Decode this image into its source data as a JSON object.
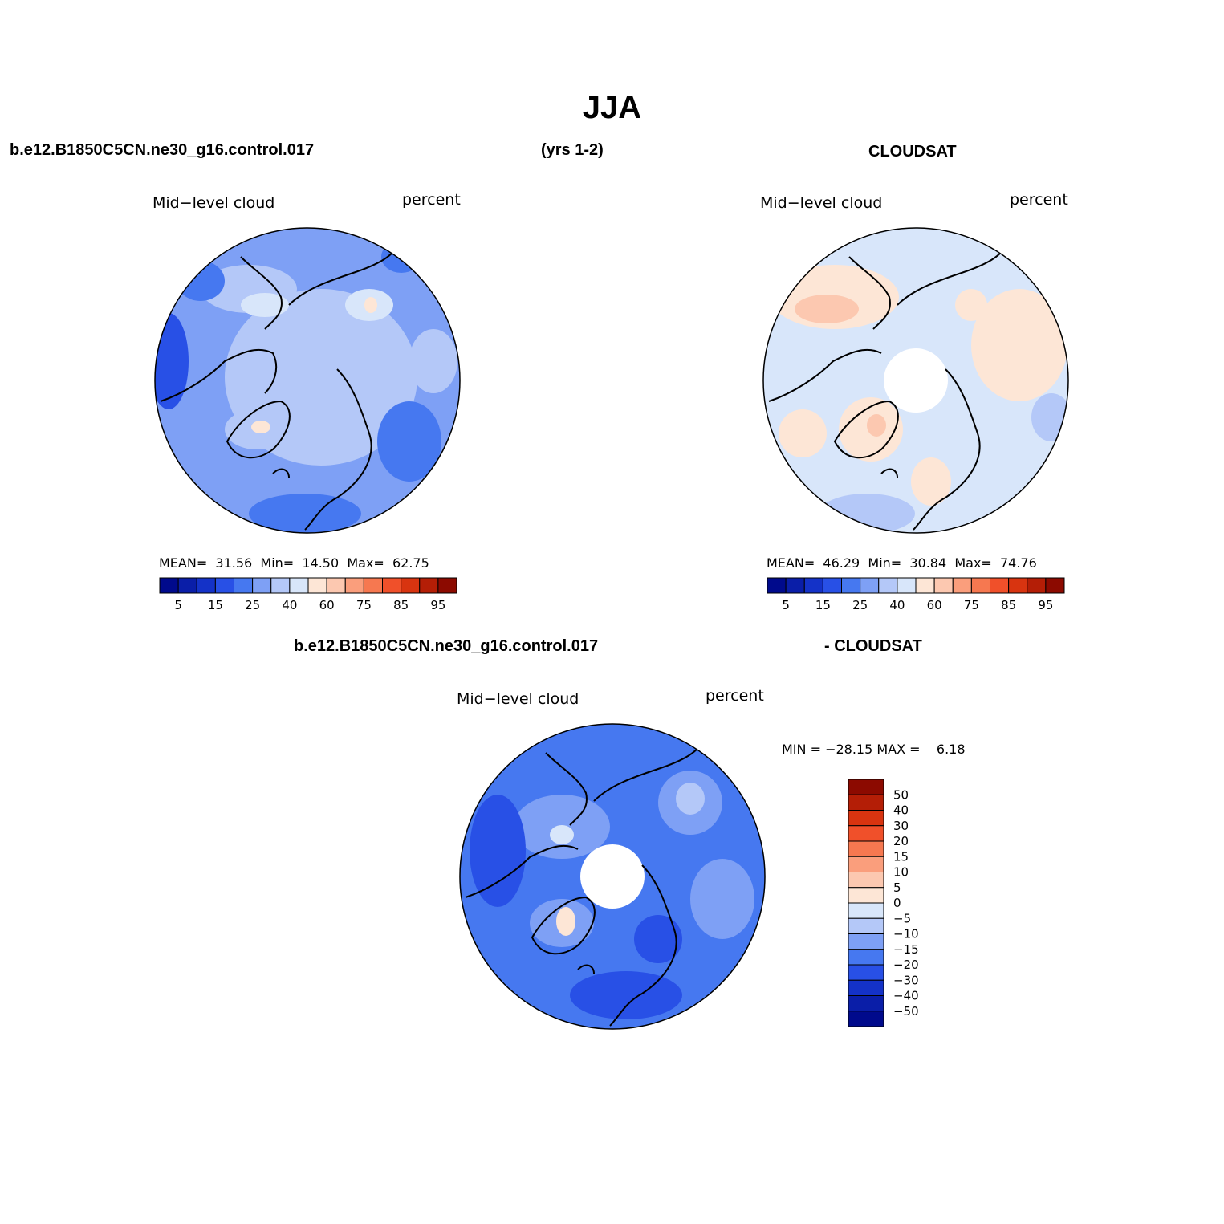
{
  "figure": {
    "season": "JJA",
    "model_case": "b.e12.B1850C5CN.ne30_g16.control.017",
    "years": "(yrs 1-2)",
    "obs_name": "CLOUDSAT",
    "diff_title_left": "b.e12.B1850C5CN.ne30_g16.control.017",
    "diff_title_right": "- CLOUDSAT"
  },
  "panels": {
    "model": {
      "variable": "Mid−level cloud",
      "units": "percent",
      "stats_text": "MEAN=  31.56  Min=  14.50  Max=  62.75",
      "mean": 31.56,
      "min": 14.5,
      "max": 62.75
    },
    "obs": {
      "variable": "Mid−level cloud",
      "units": "percent",
      "stats_text": "MEAN=  46.29  Min=  30.84  Max=  74.76",
      "mean": 46.29,
      "min": 30.84,
      "max": 74.76
    },
    "diff": {
      "variable": "Mid−level cloud",
      "units": "percent",
      "stats_text": "MIN = −28.15 MAX =    6.18",
      "min": -28.15,
      "max": 6.18
    }
  },
  "colorbars": {
    "abs": {
      "colors": [
        "#000a8c",
        "#0a1ea8",
        "#1432c8",
        "#2850e6",
        "#4678f0",
        "#7ea0f5",
        "#b4c8f8",
        "#d8e6fa",
        "#fde6d6",
        "#fcc8b0",
        "#fa9e7c",
        "#f67850",
        "#f0502a",
        "#d83410",
        "#b41e06",
        "#8c0a00"
      ],
      "tick_labels": [
        "5",
        "15",
        "25",
        "40",
        "60",
        "75",
        "85",
        "95"
      ]
    },
    "diff": {
      "colors": [
        "#8c0a00",
        "#b41e06",
        "#d83410",
        "#f0502a",
        "#f67850",
        "#fa9e7c",
        "#fcc8b0",
        "#fde6d6",
        "#d8e6fa",
        "#b4c8f8",
        "#7ea0f5",
        "#4678f0",
        "#2850e6",
        "#1432c8",
        "#0a1ea8",
        "#000a8c"
      ],
      "tick_labels": [
        "50",
        "40",
        "30",
        "20",
        "15",
        "10",
        "5",
        "0",
        "−5",
        "−10",
        "−15",
        "−20",
        "−30",
        "−40",
        "−50"
      ]
    }
  }
}
